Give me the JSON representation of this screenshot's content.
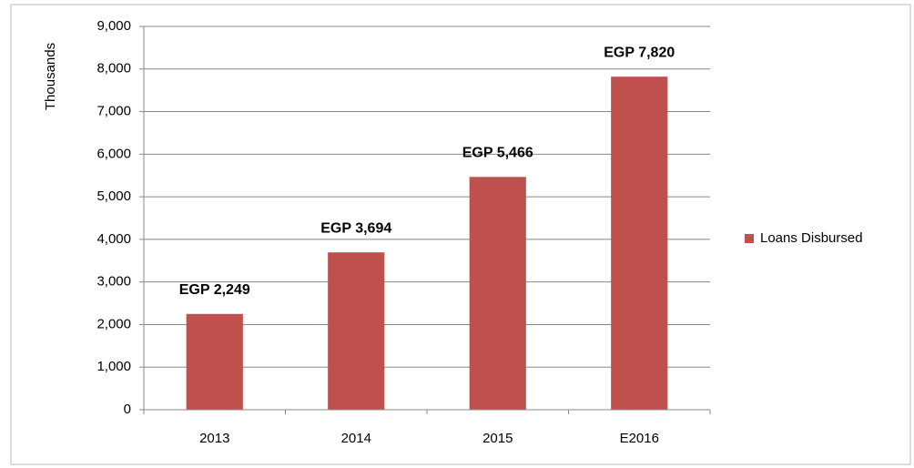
{
  "chart_data": {
    "type": "bar",
    "y_label": "Thousands",
    "categories": [
      "2013",
      "2014",
      "2015",
      "E2016"
    ],
    "series": [
      {
        "name": "Loans Disbursed",
        "color": "#c0504d",
        "values": [
          2249,
          3694,
          5466,
          7820
        ],
        "value_labels": [
          "EGP 2,249",
          "EGP 3,694",
          "EGP 5,466",
          "EGP 7,820"
        ]
      }
    ],
    "ylim": [
      0,
      9000
    ],
    "yticks": [
      0,
      {
        "value": 1000,
        "label": "1,000"
      },
      {
        "value": 2000,
        "label": "2,000"
      },
      {
        "value": 3000,
        "label": "3,000"
      },
      {
        "value": 4000,
        "label": "4,000"
      },
      {
        "value": 5000,
        "label": "5,000"
      },
      {
        "value": 6000,
        "label": "6,000"
      },
      {
        "value": 7000,
        "label": "7,000"
      },
      {
        "value": 8000,
        "label": "8,000"
      },
      {
        "value": 9000,
        "label": "9,000"
      }
    ],
    "grid": true,
    "legend": "right"
  }
}
